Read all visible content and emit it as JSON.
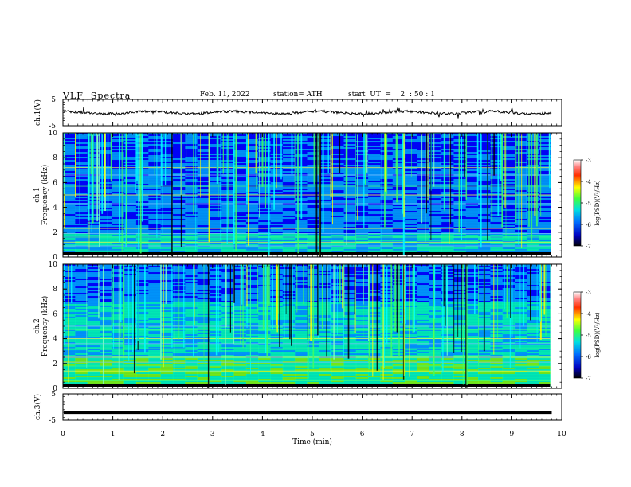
{
  "header": {
    "title": "VLF  Spectra",
    "date": "Feb. 11, 2022",
    "station": "station= ATH",
    "start": "start  UT  =    2  : 50 : 1"
  },
  "chart_data": [
    {
      "type": "line",
      "panel": "ch1-waveform",
      "ylabel": "ch.1(V)",
      "yticks": [
        "5",
        "-5"
      ],
      "ylim": [
        -5,
        5
      ],
      "xlim": [
        0,
        10
      ],
      "x_end_min": 9.8,
      "series": [
        {
          "values_note": "noisy trace",
          "level": 0,
          "color": "#000000"
        }
      ]
    },
    {
      "type": "heatmap",
      "panel": "ch1-spectrogram",
      "ylabel": "ch.1\nFrequency (kHz)",
      "ylabel_line1": "ch.1",
      "ylabel_line2": "Frequency (kHz)",
      "yticks": [
        "0",
        "2",
        "4",
        "6",
        "8",
        "10"
      ],
      "ylim": [
        0,
        10
      ],
      "xlim": [
        0,
        10
      ],
      "colorbar": {
        "label": "log(PSD)(V²/Hz)",
        "ticks": [
          "-3",
          "-4",
          "-5",
          "-6",
          "-7"
        ],
        "range": [
          -7,
          -3
        ]
      }
    },
    {
      "type": "heatmap",
      "panel": "ch2-spectrogram",
      "ylabel_line1": "ch.2",
      "ylabel_line2": "Frequency (kHz)",
      "yticks": [
        "0",
        "2",
        "4",
        "6",
        "8",
        "10"
      ],
      "ylim": [
        0,
        10
      ],
      "xlim": [
        0,
        10
      ],
      "colorbar": {
        "label": "log(PSD)(V²/Hz)",
        "ticks": [
          "-3",
          "-4",
          "-5",
          "-6",
          "-7"
        ],
        "range": [
          -7,
          -3
        ]
      }
    },
    {
      "type": "line",
      "panel": "ch3-waveform",
      "ylabel": "ch.3(V)",
      "yticks": [
        "5",
        "-5"
      ],
      "ylim": [
        -5,
        5
      ],
      "xlim": [
        0,
        10
      ],
      "x_end_min": 9.8,
      "series": [
        {
          "level": -2,
          "color": "#000000"
        }
      ]
    }
  ],
  "xaxis": {
    "label": "Time  (min)",
    "ticks": [
      "0",
      "1",
      "2",
      "3",
      "4",
      "5",
      "6",
      "7",
      "8",
      "9",
      "10"
    ]
  },
  "colors": {
    "colormap": [
      "#000060",
      "#0000ff",
      "#00a0ff",
      "#00ffb0",
      "#80ff00",
      "#ffff00",
      "#ff8000",
      "#ff0000",
      "#ffffff"
    ]
  }
}
